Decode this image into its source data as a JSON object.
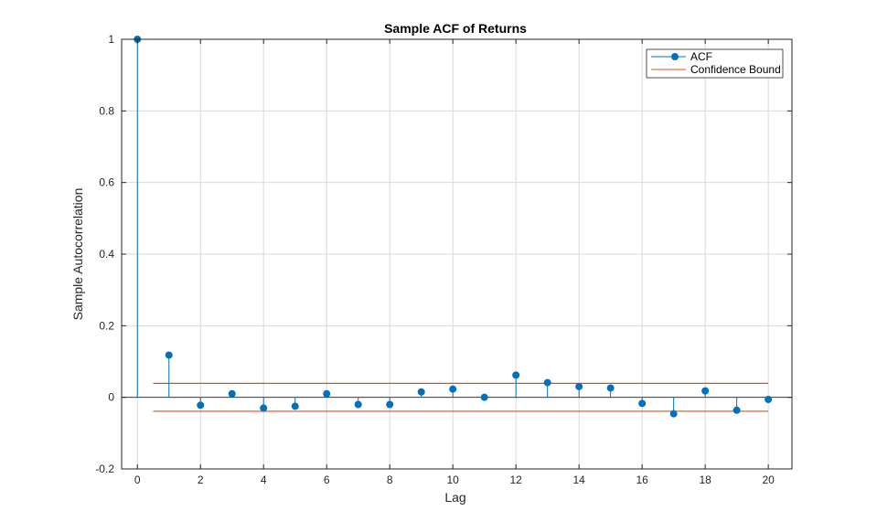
{
  "chart_data": {
    "type": "stem",
    "title": "Sample ACF of Returns",
    "xlabel": "Lag",
    "ylabel": "Sample Autocorrelation",
    "xlim": [
      -0.5,
      20.75
    ],
    "ylim": [
      -0.2,
      1.0
    ],
    "xticks": [
      0,
      2,
      4,
      6,
      8,
      10,
      12,
      14,
      16,
      18,
      20
    ],
    "yticks": [
      -0.2,
      0,
      0.2,
      0.4,
      0.6,
      0.8,
      1
    ],
    "ytick_labels": [
      "-0.2",
      "0",
      "0.2",
      "0.4",
      "0.6",
      "0.8",
      "1"
    ],
    "grid": true,
    "legend_position": "top-right",
    "series": [
      {
        "name": "ACF",
        "color": "#0072BD",
        "x": [
          0,
          1,
          2,
          3,
          4,
          5,
          6,
          7,
          8,
          9,
          10,
          11,
          12,
          13,
          14,
          15,
          16,
          17,
          18,
          19,
          20
        ],
        "values": [
          1.0,
          0.118,
          -0.022,
          0.01,
          -0.03,
          -0.025,
          0.01,
          -0.02,
          -0.02,
          0.015,
          0.023,
          0.0,
          0.062,
          0.041,
          0.03,
          0.026,
          -0.017,
          -0.046,
          0.018,
          -0.036,
          -0.006
        ]
      },
      {
        "name": "Confidence Bound",
        "color": "#D95319",
        "x_range": [
          0.5,
          20
        ],
        "upper": 0.039,
        "lower": -0.039
      }
    ]
  }
}
